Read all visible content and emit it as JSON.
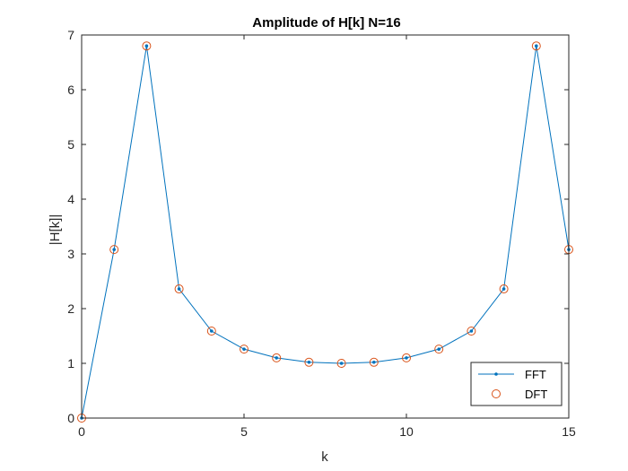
{
  "chart_data": {
    "type": "line",
    "title": "Amplitude of H[k] N=16",
    "xlabel": "k",
    "ylabel": "|H[k]|",
    "xlim": [
      0,
      15
    ],
    "ylim": [
      0,
      7
    ],
    "xticks": [
      0,
      5,
      10,
      15
    ],
    "yticks": [
      0,
      1,
      2,
      3,
      4,
      5,
      6,
      7
    ],
    "grid": false,
    "box": true,
    "legend_location": "bottom-right",
    "x": [
      0,
      1,
      2,
      3,
      4,
      5,
      6,
      7,
      8,
      9,
      10,
      11,
      12,
      13,
      14,
      15
    ],
    "series": [
      {
        "name": "FFT",
        "style": "line-dot",
        "color": "#0072BD",
        "values": [
          0,
          3.08,
          6.8,
          2.36,
          1.59,
          1.26,
          1.1,
          1.02,
          1.0,
          1.02,
          1.1,
          1.26,
          1.59,
          2.36,
          6.8,
          3.08
        ]
      },
      {
        "name": "DFT",
        "style": "circle-marker",
        "color": "#D95319",
        "values": [
          0,
          3.08,
          6.8,
          2.36,
          1.59,
          1.26,
          1.1,
          1.02,
          1.0,
          1.02,
          1.1,
          1.26,
          1.59,
          2.36,
          6.8,
          3.08
        ]
      }
    ]
  }
}
